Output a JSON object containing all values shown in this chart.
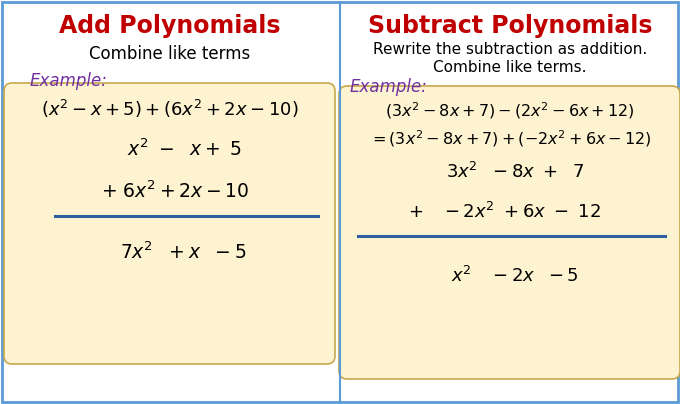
{
  "fig_width": 6.8,
  "fig_height": 4.04,
  "bg_color": "#ffffff",
  "border_color": "#5b9bd5",
  "divider_color": "#5b9bd5",
  "box_bg_color": "#fdf3d0",
  "box_border_color": "#c8a84b",
  "title_color": "#c00000",
  "subtitle_color": "#000000",
  "example_color": "#7030a0",
  "math_color": "#000000",
  "underline_color": "#2e5fa3",
  "left_title": "Add Polynomials",
  "left_subtitle": "Combine like terms",
  "left_example_label": "Example:",
  "right_title": "Subtract Polynomials",
  "right_subtitle1": "Rewrite the subtraction as addition.",
  "right_subtitle2": "Combine like terms.",
  "right_example_label": "Example:"
}
